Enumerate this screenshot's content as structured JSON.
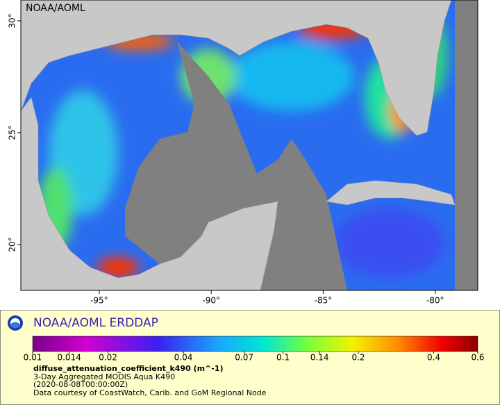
{
  "map": {
    "credit": "NOAA/AOML",
    "lon_range": [
      -98.5,
      -78.1
    ],
    "lat_range": [
      17.95,
      30.93
    ],
    "lon_ticks": [
      {
        "value": -95,
        "label": "-95°"
      },
      {
        "value": -90,
        "label": "-90°"
      },
      {
        "value": -85,
        "label": "-85°"
      },
      {
        "value": -80,
        "label": "-80°"
      }
    ],
    "lat_ticks": [
      {
        "value": 20,
        "label": "20°"
      },
      {
        "value": 25,
        "label": "25°"
      },
      {
        "value": 30,
        "label": "30°"
      }
    ]
  },
  "legend": {
    "title": "NOAA/AOML ERDDAP",
    "colorbar_range": [
      0.01,
      0.6
    ],
    "colorbar_scale": "log",
    "colorbar_ticks": [
      0.01,
      0.014,
      0.02,
      0.04,
      0.07,
      0.1,
      0.14,
      0.2,
      0.4,
      0.6
    ],
    "variable": "diffuse_attenuation_coefficient_k490 (m^-1)",
    "lines": [
      "3-Day Aggregated MODIS Aqua K490",
      "(2020-08-08T00:00:00Z)",
      "Data courtesy of CoastWatch, Carib. and GoM Regional Node"
    ]
  }
}
